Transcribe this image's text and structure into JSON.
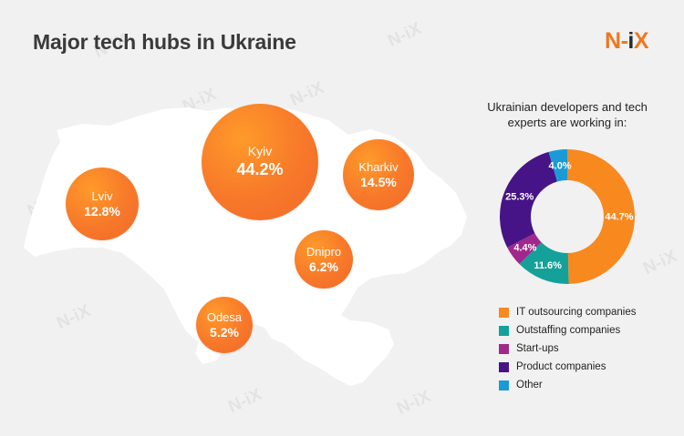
{
  "header": {
    "title": "Major tech hubs in Ukraine",
    "logo_text": "N-iX"
  },
  "watermark_text": "N-iX",
  "hubs": [
    {
      "city": "Kyiv",
      "share": "44.2%"
    },
    {
      "city": "Kharkiv",
      "share": "14.5%"
    },
    {
      "city": "Lviv",
      "share": "12.8%"
    },
    {
      "city": "Dnipro",
      "share": "6.2%"
    },
    {
      "city": "Odesa",
      "share": "5.2%"
    }
  ],
  "colors": {
    "accent_orange": "#f7782a",
    "map_fill": "#ffffff",
    "background": "#f1f1f1"
  },
  "chart_data": {
    "type": "pie",
    "subtype": "donut",
    "title": "Ukrainian developers and tech experts are working in:",
    "legend_position": "bottom",
    "slices": [
      {
        "label": "IT outsourcing companies",
        "value": 44.7,
        "display": "44.7%",
        "color": "#f7891f"
      },
      {
        "label": "Outstaffing companies",
        "value": 11.6,
        "display": "11.6%",
        "color": "#14a19a"
      },
      {
        "label": "Start-ups",
        "value": 4.4,
        "display": "4.4%",
        "color": "#a0288c"
      },
      {
        "label": "Product companies",
        "value": 25.3,
        "display": "25.3%",
        "color": "#461486"
      },
      {
        "label": "Other",
        "value": 4.0,
        "display": "4.0%",
        "color": "#1a9bd7"
      }
    ]
  }
}
